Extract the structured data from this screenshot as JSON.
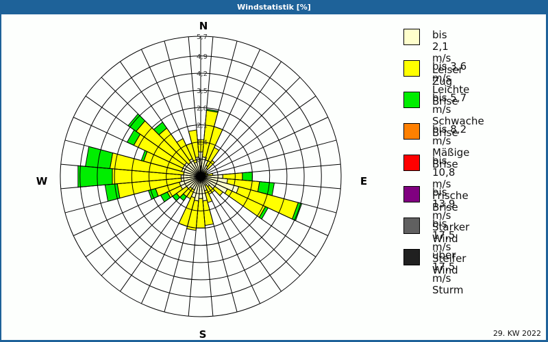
{
  "title": "Windstatistik [%]",
  "footer": "29. KW 2022",
  "compass": {
    "n": "N",
    "e": "E",
    "s": "S",
    "w": "W"
  },
  "legend": [
    {
      "range": "bis 2,1 m/s",
      "name": "Leiser Zug",
      "color": "#ffffcc"
    },
    {
      "range": "bis 3,6 m/s",
      "name": "Leichte Brise",
      "color": "#ffff00"
    },
    {
      "range": "bis 5,7 m/s",
      "name": "Schwache Brise",
      "color": "#00ee00"
    },
    {
      "range": "bis 8,2 m/s",
      "name": "Mäßige Brise",
      "color": "#ff8000"
    },
    {
      "range": "bis 10,8 m/s",
      "name": "Frische Brise",
      "color": "#ff0000"
    },
    {
      "range": "bis 13,9 m/s",
      "name": "Starker Wind",
      "color": "#800080"
    },
    {
      "range": "bis 17,5 m/s",
      "name": "Steifer Wind",
      "color": "#606060"
    },
    {
      "range": "über 17,5 m/s",
      "name": "Sturm",
      "color": "#202020"
    }
  ],
  "chart_data": {
    "type": "polar-bar",
    "title": "Windstatistik [%]",
    "subtitle": "29. KW 2022",
    "radial_ticks": [
      "0,7",
      "1,4",
      "2,1",
      "2,8",
      "3,5",
      "4,2",
      "4,9",
      "5,7"
    ],
    "radial_max": 5.7,
    "sector_width_deg": 10,
    "series_names": [
      "Leiser Zug",
      "Leichte Brise",
      "Schwache Brise"
    ],
    "sectors": [
      {
        "dir": 0,
        "values": [
          1.0,
          0.5,
          0
        ]
      },
      {
        "dir": 10,
        "values": [
          0.8,
          1.9,
          0.05
        ]
      },
      {
        "dir": 20,
        "values": [
          0.7,
          1.4,
          0
        ]
      },
      {
        "dir": 30,
        "values": [
          0.5,
          0.8,
          0
        ]
      },
      {
        "dir": 40,
        "values": [
          0.4,
          0.4,
          0
        ]
      },
      {
        "dir": 50,
        "values": [
          0.2,
          0.1,
          0
        ]
      },
      {
        "dir": 60,
        "values": [
          0.15,
          0.1,
          0
        ]
      },
      {
        "dir": 70,
        "values": [
          0.2,
          0.1,
          0
        ]
      },
      {
        "dir": 80,
        "values": [
          0.3,
          0.2,
          0
        ]
      },
      {
        "dir": 90,
        "values": [
          0.9,
          0.8,
          0.4
        ]
      },
      {
        "dir": 100,
        "values": [
          1.1,
          1.3,
          0.6
        ]
      },
      {
        "dir": 110,
        "values": [
          1.6,
          2.5,
          0.15
        ]
      },
      {
        "dir": 120,
        "values": [
          1.2,
          1.7,
          0.12
        ]
      },
      {
        "dir": 130,
        "values": [
          0.7,
          0.4,
          0
        ]
      },
      {
        "dir": 140,
        "values": [
          0.5,
          0.3,
          0
        ]
      },
      {
        "dir": 150,
        "values": [
          0.4,
          0.4,
          0
        ]
      },
      {
        "dir": 160,
        "values": [
          0.6,
          0.5,
          0
        ]
      },
      {
        "dir": 170,
        "values": [
          1.0,
          1.0,
          0
        ]
      },
      {
        "dir": 180,
        "values": [
          0.9,
          1.2,
          0
        ]
      },
      {
        "dir": 190,
        "values": [
          1.0,
          1.2,
          0
        ]
      },
      {
        "dir": 200,
        "values": [
          0.9,
          1.2,
          0
        ]
      },
      {
        "dir": 210,
        "values": [
          0.6,
          0.4,
          0
        ]
      },
      {
        "dir": 220,
        "values": [
          0.6,
          0.4,
          0.2
        ]
      },
      {
        "dir": 230,
        "values": [
          0.7,
          0.5,
          0.2
        ]
      },
      {
        "dir": 240,
        "values": [
          0.9,
          0.6,
          0.3
        ]
      },
      {
        "dir": 250,
        "values": [
          0.9,
          1.0,
          0.3
        ]
      },
      {
        "dir": 260,
        "values": [
          0.8,
          2.6,
          0.5
        ]
      },
      {
        "dir": 270,
        "values": [
          0.8,
          2.8,
          1.4
        ]
      },
      {
        "dir": 280,
        "values": [
          0.7,
          3.0,
          1.0
        ]
      },
      {
        "dir": 290,
        "values": [
          0.8,
          1.6,
          0.1
        ]
      },
      {
        "dir": 300,
        "values": [
          0.8,
          2.2,
          0.3
        ]
      },
      {
        "dir": 310,
        "values": [
          0.8,
          2.4,
          0.4
        ]
      },
      {
        "dir": 320,
        "values": [
          0.7,
          1.7,
          0.3
        ]
      },
      {
        "dir": 330,
        "values": [
          0.8,
          0.9,
          0
        ]
      },
      {
        "dir": 340,
        "values": [
          0.6,
          0.8,
          0
        ]
      },
      {
        "dir": 350,
        "values": [
          0.8,
          1.1,
          0
        ]
      }
    ]
  }
}
